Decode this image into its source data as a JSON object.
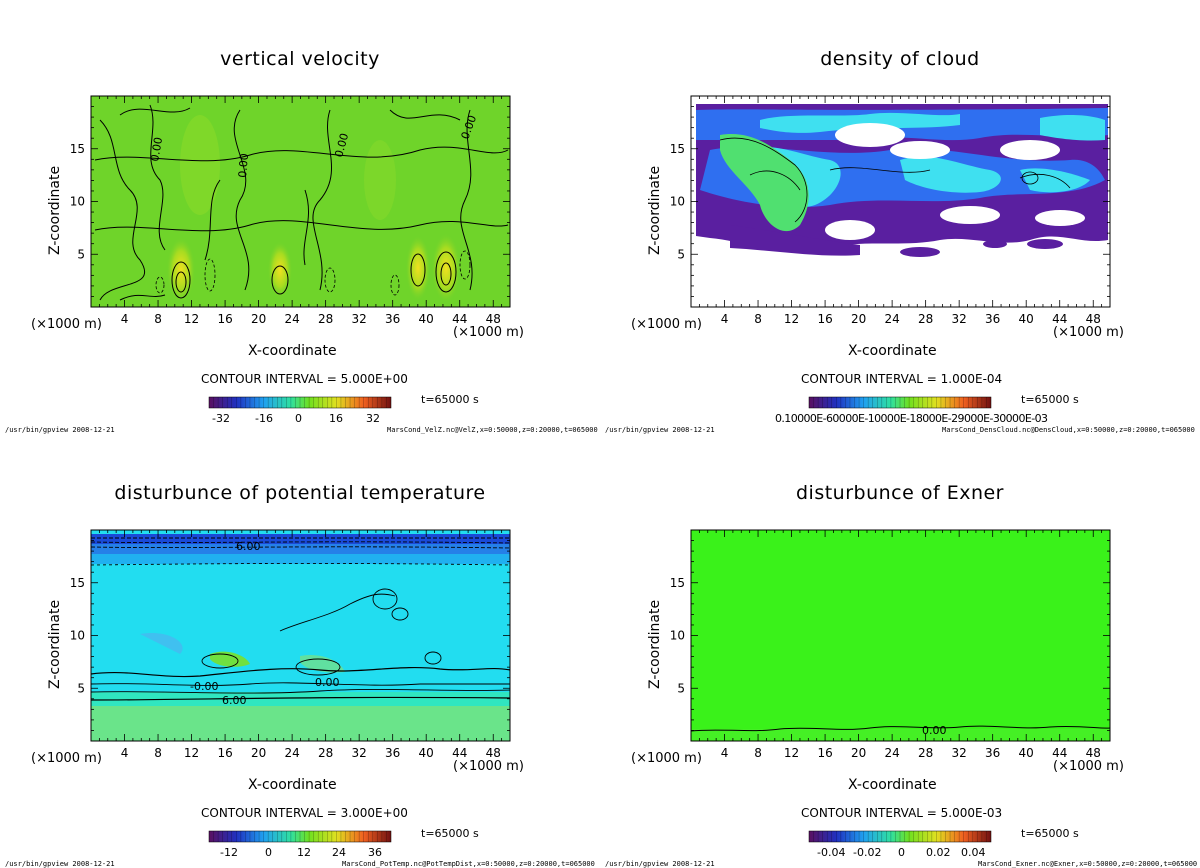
{
  "panels": [
    {
      "title": "vertical velocity",
      "contour_interval": "CONTOUR INTERVAL = 5.000E+00",
      "time": "t=65000 s",
      "colorbar_ticks": [
        "-32",
        "-16",
        "0",
        "16",
        "32"
      ],
      "footer_left": "/usr/bin/gpview  2008-12-21",
      "footer_right": "MarsCond_VelZ.nc@VelZ,x=0:50000,z=0:20000,t=065000",
      "contour_labels": [
        "0.00",
        "0.00",
        "0.00",
        "0.00"
      ]
    },
    {
      "title": "density of cloud",
      "contour_interval": "CONTOUR INTERVAL = 1.000E-04",
      "time": "t=65000 s",
      "colorbar_ticks_text": "0.10000E-60000E-10000E-18000E-29000E-30000E-03",
      "footer_left": "/usr/bin/gpview  2008-12-21",
      "footer_right": "MarsCond_DensCloud.nc@DensCloud,x=0:50000,z=0:20000,t=065000"
    },
    {
      "title": "disturbunce of potential temperature",
      "contour_interval": "CONTOUR INTERVAL = 3.000E+00",
      "time": "t=65000 s",
      "colorbar_ticks": [
        "-12",
        "0",
        "12",
        "24",
        "36"
      ],
      "footer_left": "/usr/bin/gpview  2008-12-21",
      "footer_right": "MarsCond_PotTemp.nc@PotTempDist,x=0:50000,z=0:20000,t=065000",
      "contour_labels": [
        "6.00",
        "-0.00",
        "0.00",
        "6.00"
      ]
    },
    {
      "title": "disturbunce of Exner",
      "contour_interval": "CONTOUR INTERVAL = 5.000E-03",
      "time": "t=65000 s",
      "colorbar_ticks": [
        "-0.04",
        "-0.02",
        "0",
        "0.02",
        "0.04"
      ],
      "footer_left": "/usr/bin/gpview  2008-12-21",
      "footer_right": "MarsCond_Exner.nc@Exner,x=0:50000,z=0:20000,t=065000",
      "contour_labels": [
        "0.00"
      ]
    }
  ],
  "axes": {
    "xlabel": "X-coordinate",
    "ylabel": "Z-coordinate",
    "x_unit": "(×1000 m)",
    "x_ticks": [
      "4",
      "8",
      "12",
      "16",
      "20",
      "24",
      "28",
      "32",
      "36",
      "40",
      "44",
      "48"
    ],
    "y_ticks": [
      "5",
      "10",
      "15"
    ]
  },
  "colors": {
    "velocity_field": "#6fd42a",
    "cloud_base": "#5a1fa0",
    "cloud_mid": "#2f6ff0",
    "cloud_high": "#3fe0f0",
    "cloud_peak": "#50e070",
    "pottemp_field": "#22ddf0",
    "pottemp_top": "#1a4ad8",
    "exner_field": "#3af21a"
  },
  "chart_data": [
    {
      "type": "heatmap",
      "title": "vertical velocity",
      "xlabel": "X-coordinate",
      "ylabel": "Z-coordinate",
      "xlim": [
        0,
        50
      ],
      "ylim": [
        0,
        20
      ],
      "x_ticks": [
        4,
        8,
        12,
        16,
        20,
        24,
        28,
        32,
        36,
        40,
        44,
        48
      ],
      "y_ticks": [
        5,
        10,
        15
      ],
      "colorbar_ticks": [
        -32,
        -16,
        0,
        16,
        32
      ],
      "contour_interval": 5.0,
      "time_s": 65000
    },
    {
      "type": "heatmap",
      "title": "density of cloud",
      "xlabel": "X-coordinate",
      "ylabel": "Z-coordinate",
      "xlim": [
        0,
        50
      ],
      "ylim": [
        0,
        20
      ],
      "x_ticks": [
        4,
        8,
        12,
        16,
        20,
        24,
        28,
        32,
        36,
        40,
        44,
        48
      ],
      "y_ticks": [
        5,
        10,
        15
      ],
      "contour_interval": 0.0001,
      "time_s": 65000
    },
    {
      "type": "heatmap",
      "title": "disturbunce of potential temperature",
      "xlabel": "X-coordinate",
      "ylabel": "Z-coordinate",
      "xlim": [
        0,
        50
      ],
      "ylim": [
        0,
        20
      ],
      "x_ticks": [
        4,
        8,
        12,
        16,
        20,
        24,
        28,
        32,
        36,
        40,
        44,
        48
      ],
      "y_ticks": [
        5,
        10,
        15
      ],
      "colorbar_ticks": [
        -12,
        0,
        12,
        24,
        36
      ],
      "contour_interval": 3.0,
      "time_s": 65000
    },
    {
      "type": "heatmap",
      "title": "disturbunce of Exner",
      "xlabel": "X-coordinate",
      "ylabel": "Z-coordinate",
      "xlim": [
        0,
        50
      ],
      "ylim": [
        0,
        20
      ],
      "x_ticks": [
        4,
        8,
        12,
        16,
        20,
        24,
        28,
        32,
        36,
        40,
        44,
        48
      ],
      "y_ticks": [
        5,
        10,
        15
      ],
      "colorbar_ticks": [
        -0.04,
        -0.02,
        0,
        0.02,
        0.04
      ],
      "contour_interval": 0.005,
      "time_s": 65000
    }
  ]
}
